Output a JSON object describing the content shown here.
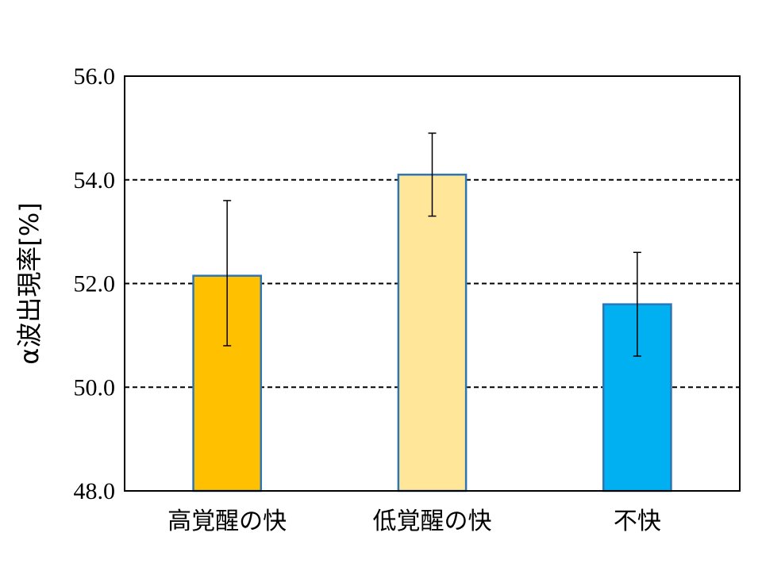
{
  "chart_data": {
    "type": "bar",
    "title": "",
    "xlabel": "",
    "ylabel": "α波出現率[%]",
    "ylim": [
      48.0,
      56.0
    ],
    "yticks": [
      48.0,
      50.0,
      52.0,
      54.0,
      56.0
    ],
    "ytick_labels": [
      "48.0",
      "50.0",
      "52.0",
      "54.0",
      "56.0"
    ],
    "grid": "horizontal dashed",
    "categories": [
      "高覚醒の快",
      "低覚醒の快",
      "不快"
    ],
    "values": [
      52.15,
      54.1,
      51.6
    ],
    "error_bars": [
      {
        "low": 50.8,
        "high": 53.6
      },
      {
        "low": 53.3,
        "high": 54.9
      },
      {
        "low": 50.6,
        "high": 52.6
      }
    ],
    "colors": [
      "#FFC000",
      "#FFE699",
      "#00B0F0"
    ],
    "edge_color": "#2E75B6"
  }
}
